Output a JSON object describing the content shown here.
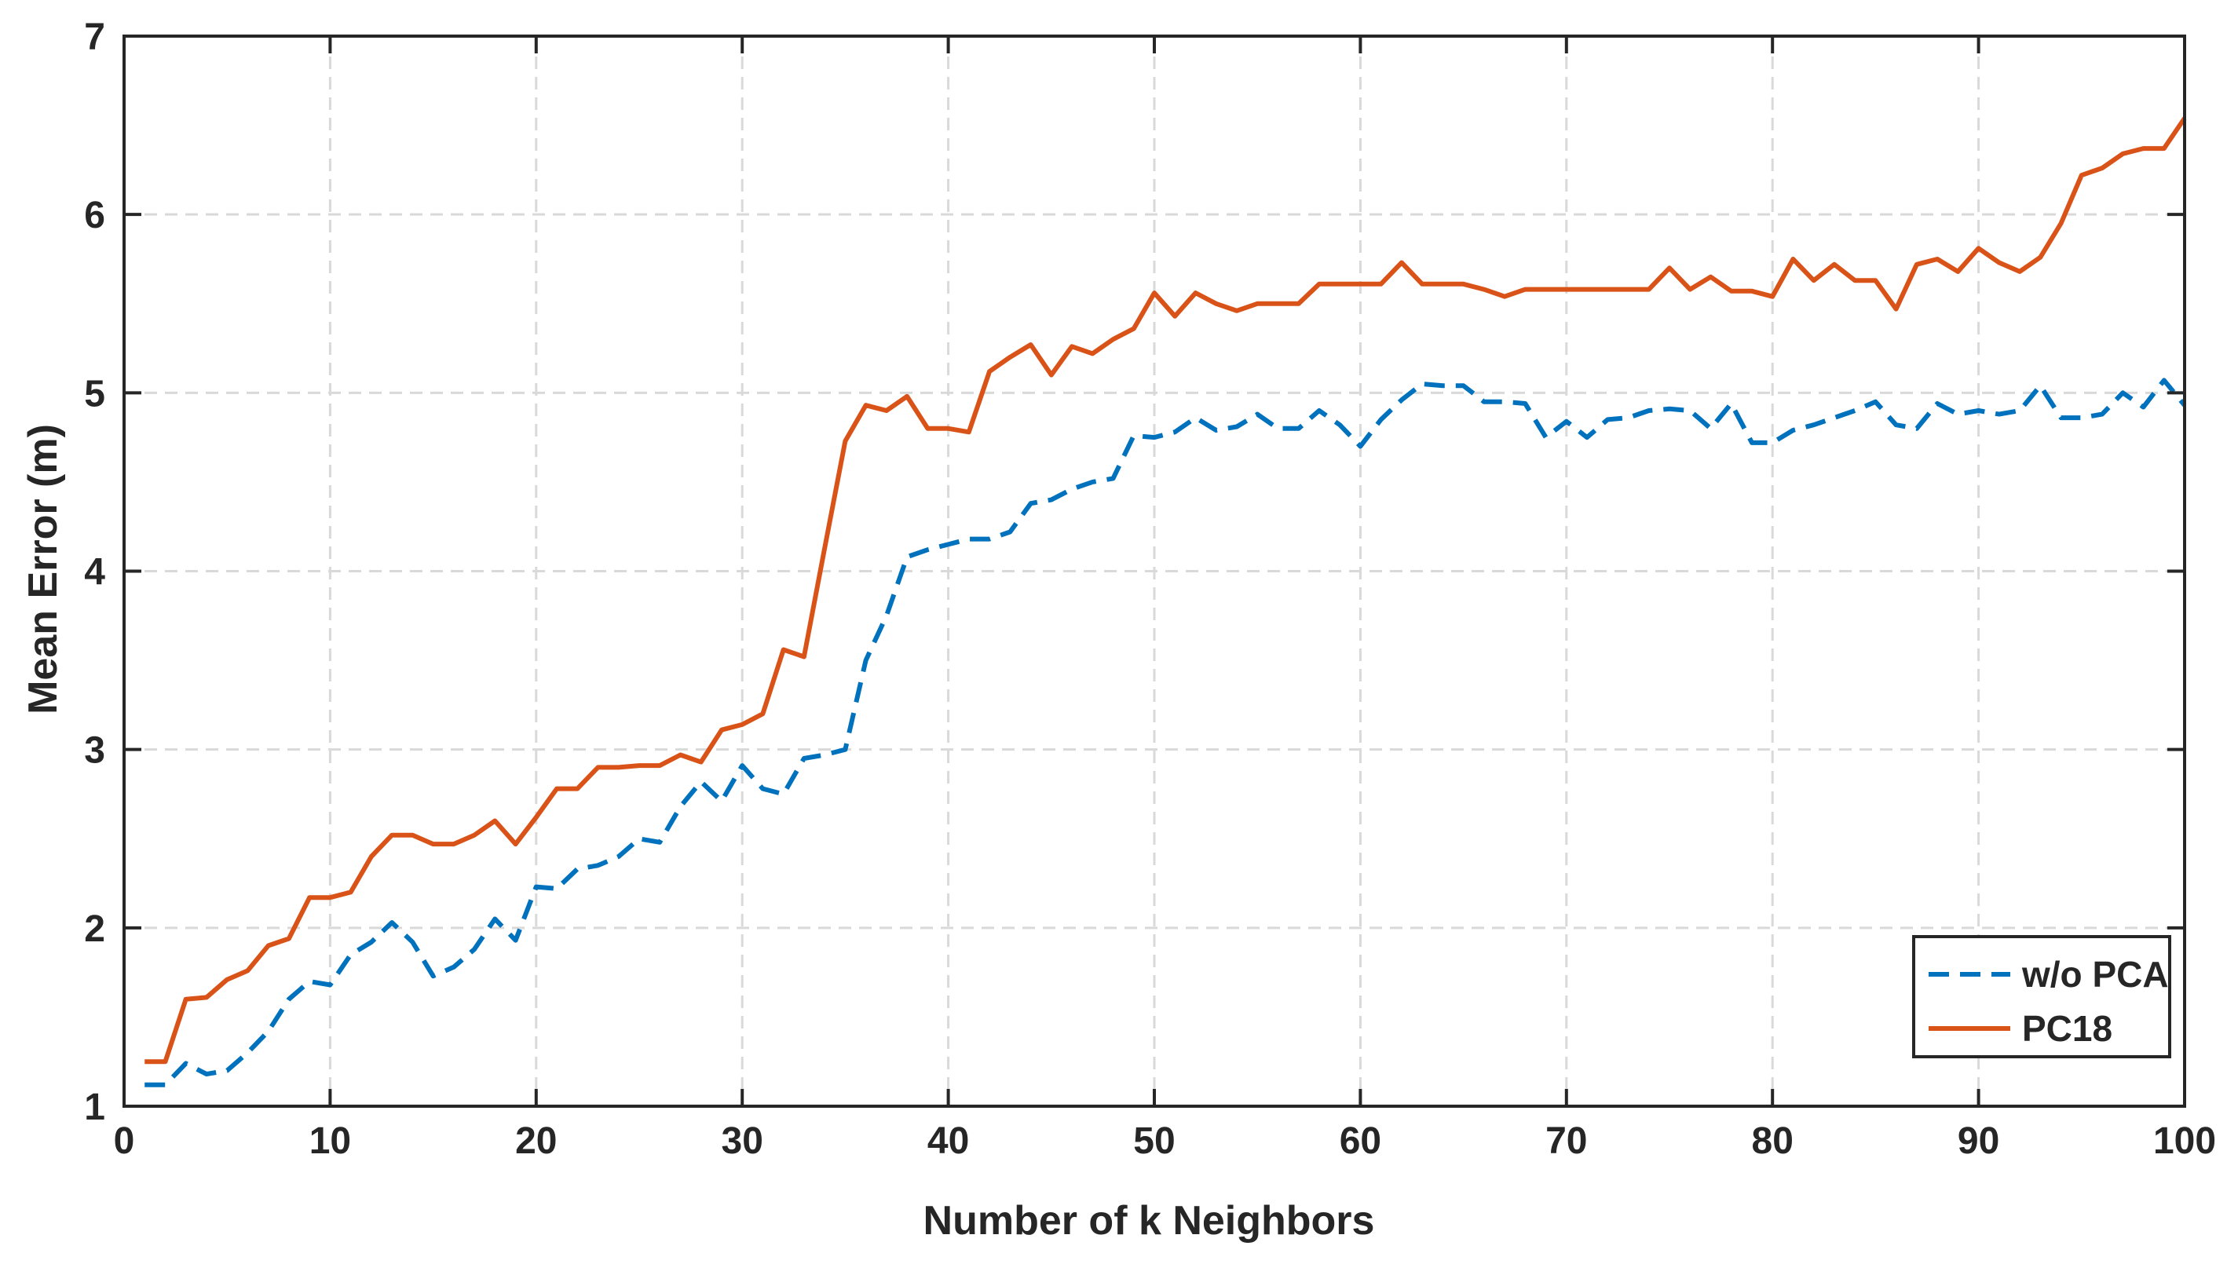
{
  "chart_data": {
    "type": "line",
    "xlabel": "Number of k Neighbors",
    "ylabel": "Mean Error (m)",
    "xlim": [
      0,
      100
    ],
    "ylim": [
      1,
      7
    ],
    "xticks": [
      0,
      10,
      20,
      30,
      40,
      50,
      60,
      70,
      80,
      90,
      100
    ],
    "yticks": [
      1,
      2,
      3,
      4,
      5,
      6,
      7
    ],
    "grid": true,
    "legend_position": "bottom-right",
    "x": [
      1,
      2,
      3,
      4,
      5,
      6,
      7,
      8,
      9,
      10,
      11,
      12,
      13,
      14,
      15,
      16,
      17,
      18,
      19,
      20,
      21,
      22,
      23,
      24,
      25,
      26,
      27,
      28,
      29,
      30,
      31,
      32,
      33,
      34,
      35,
      36,
      37,
      38,
      39,
      40,
      41,
      42,
      43,
      44,
      45,
      46,
      47,
      48,
      49,
      50,
      51,
      52,
      53,
      54,
      55,
      56,
      57,
      58,
      59,
      60,
      61,
      62,
      63,
      64,
      65,
      66,
      67,
      68,
      69,
      70,
      71,
      72,
      73,
      74,
      75,
      76,
      77,
      78,
      79,
      80,
      81,
      82,
      83,
      84,
      85,
      86,
      87,
      88,
      89,
      90,
      91,
      92,
      93,
      94,
      95,
      96,
      97,
      98,
      99,
      100
    ],
    "series": [
      {
        "name": "w/o PCA",
        "style": "dashed",
        "color": "#0072BD",
        "values": [
          1.12,
          1.12,
          1.24,
          1.18,
          1.2,
          1.3,
          1.42,
          1.6,
          1.7,
          1.68,
          1.85,
          1.92,
          2.03,
          1.92,
          1.73,
          1.78,
          1.88,
          2.05,
          1.93,
          2.23,
          2.22,
          2.33,
          2.35,
          2.4,
          2.5,
          2.48,
          2.68,
          2.82,
          2.71,
          2.91,
          2.78,
          2.75,
          2.95,
          2.97,
          3.0,
          3.5,
          3.75,
          4.08,
          4.12,
          4.15,
          4.18,
          4.18,
          4.22,
          4.38,
          4.4,
          4.46,
          4.5,
          4.52,
          4.76,
          4.75,
          4.78,
          4.86,
          4.79,
          4.81,
          4.88,
          4.8,
          4.8,
          4.9,
          4.82,
          4.7,
          4.85,
          4.96,
          5.05,
          5.04,
          5.04,
          4.95,
          4.95,
          4.94,
          4.75,
          4.84,
          4.75,
          4.85,
          4.86,
          4.9,
          4.91,
          4.9,
          4.8,
          4.94,
          4.72,
          4.72,
          4.79,
          4.82,
          4.86,
          4.9,
          4.95,
          4.82,
          4.8,
          4.94,
          4.88,
          4.9,
          4.88,
          4.9,
          5.04,
          4.86,
          4.86,
          4.88,
          5.0,
          4.92,
          5.07,
          4.93
        ]
      },
      {
        "name": "PC18",
        "style": "solid",
        "color": "#D95319",
        "values": [
          1.25,
          1.25,
          1.6,
          1.61,
          1.71,
          1.76,
          1.9,
          1.94,
          2.17,
          2.17,
          2.2,
          2.4,
          2.52,
          2.52,
          2.47,
          2.47,
          2.52,
          2.6,
          2.47,
          2.62,
          2.78,
          2.78,
          2.9,
          2.9,
          2.91,
          2.91,
          2.97,
          2.93,
          3.11,
          3.14,
          3.2,
          3.56,
          3.52,
          4.13,
          4.73,
          4.93,
          4.9,
          4.98,
          4.8,
          4.8,
          4.78,
          5.12,
          5.2,
          5.27,
          5.1,
          5.26,
          5.22,
          5.3,
          5.36,
          5.56,
          5.43,
          5.56,
          5.5,
          5.46,
          5.5,
          5.5,
          5.5,
          5.61,
          5.61,
          5.61,
          5.61,
          5.73,
          5.61,
          5.61,
          5.61,
          5.58,
          5.54,
          5.58,
          5.58,
          5.58,
          5.58,
          5.58,
          5.58,
          5.58,
          5.7,
          5.58,
          5.65,
          5.57,
          5.57,
          5.54,
          5.75,
          5.63,
          5.72,
          5.63,
          5.63,
          5.47,
          5.72,
          5.75,
          5.68,
          5.81,
          5.73,
          5.68,
          5.76,
          5.95,
          6.22,
          6.26,
          6.34,
          6.37,
          6.37,
          6.54
        ]
      }
    ]
  }
}
